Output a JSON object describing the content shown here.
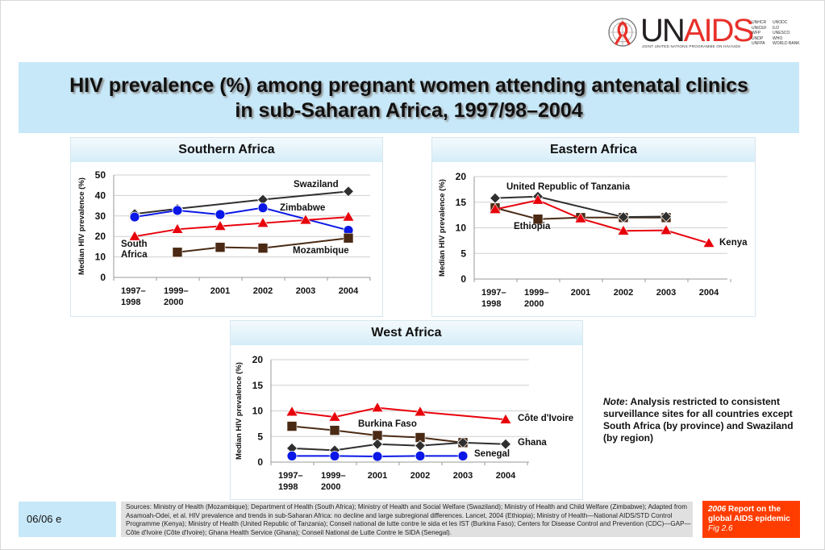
{
  "logo": {
    "brand_un": "UN",
    "brand_aids": "AIDS",
    "tagline": "JOINT UNITED NATIONS PROGRAMME ON HIV/AIDS",
    "agencies_col1": [
      "UNHCR",
      "UNICEF",
      "WFP",
      "UNDP",
      "UNFPA"
    ],
    "agencies_col2": [
      "UNODC",
      "ILO",
      "UNESCO",
      "WHO",
      "WORLD BANK"
    ]
  },
  "title": {
    "line1": "HIV prevalence (%) among pregnant women attending antenatal clinics",
    "line2": "in sub-Saharan Africa, 1997/98–2004"
  },
  "note": {
    "label": "Note",
    "text": ": Analysis restricted to consistent surveillance sites for all countries except South Africa (by province) and Swaziland (by region)"
  },
  "footer": {
    "date": "06/06  e",
    "sources": "Sources:  Ministry of Health (Mozambique); Department of Health (South Africa); Ministry of Health and Social Welfare (Swaziland); Ministry of Health and Child Welfare (Zimbabwe); Adapted from Asamoah-Odei, et al. HIV prevalence and trends in sub-Saharan Africa: no decline and large subregional differences. Lancet, 2004 (Ethiopia); Ministry of Health—National AIDS/STD Control Programme (Kenya); Ministry of Health (United Republic of Tanzania); Conseil national de lutte contre le sida et les IST (Burkina Faso); Centers for Disease Control and Prevention (CDC)—GAP—Côte d'Ivoire (Côte d'Ivoire); Ghana Health Service (Ghana); Conseil National de Lutte Contre le SIDA (Senegal).",
    "report_year": "2006",
    "report_title": " Report on the global AIDS epidemic",
    "report_fig": "Fig 2.6"
  },
  "colors": {
    "title_band": "#c7e8f8",
    "report_box": "#ff3d00",
    "red": "#e8000b",
    "blue": "#0a17e6",
    "brown": "#4a2a14",
    "dark": "#2f2f2f"
  },
  "chart_data": [
    {
      "type": "line",
      "title": "Southern Africa",
      "ylabel": "Median HIV prevalence (%)",
      "xlabel": "",
      "categories": [
        "1997–1998",
        "1999–2000",
        "2001",
        "2002",
        "2003",
        "2004"
      ],
      "yticks": [
        0,
        10,
        20,
        30,
        40,
        50
      ],
      "ylim": [
        0,
        50
      ],
      "grid": true,
      "series": [
        {
          "name": "Swaziland",
          "marker": "diamond",
          "color": "#2f2f2f",
          "values": [
            31,
            33.5,
            null,
            38,
            null,
            42
          ]
        },
        {
          "name": "Zimbabwe",
          "marker": "circle",
          "color": "#0a17e6",
          "values": [
            29.5,
            32.7,
            30.7,
            34,
            null,
            23
          ]
        },
        {
          "name": "South Africa",
          "marker": "triangle",
          "color": "#e8000b",
          "values": [
            20,
            23.5,
            25,
            26.5,
            28,
            29.5
          ]
        },
        {
          "name": "Mozambique",
          "marker": "square",
          "color": "#4a2a14",
          "values": [
            null,
            12.3,
            14.7,
            14.3,
            null,
            19.2
          ]
        }
      ]
    },
    {
      "type": "line",
      "title": "Eastern Africa",
      "ylabel": "Median HIV prevalence (%)",
      "xlabel": "",
      "categories": [
        "1997–1998",
        "1999–2000",
        "2001",
        "2002",
        "2003",
        "2004"
      ],
      "yticks": [
        0,
        5,
        10,
        15,
        20
      ],
      "ylim": [
        0,
        20
      ],
      "grid": true,
      "series": [
        {
          "name": "Ethiopia",
          "marker": "square",
          "color": "#4a2a14",
          "values": [
            13.9,
            11.7,
            12.0,
            12.0,
            12.0,
            null
          ]
        },
        {
          "name": "United Republic of Tanzania",
          "marker": "diamond",
          "color": "#2f2f2f",
          "values": [
            15.8,
            16.1,
            null,
            12.1,
            12.2,
            null
          ]
        },
        {
          "name": "Kenya",
          "marker": "triangle",
          "color": "#e8000b",
          "values": [
            13.6,
            15.4,
            11.8,
            9.4,
            9.5,
            7.0
          ]
        }
      ]
    },
    {
      "type": "line",
      "title": "West Africa",
      "ylabel": "Median HIV prevalence (%)",
      "xlabel": "",
      "categories": [
        "1997–1998",
        "1999–2000",
        "2001",
        "2002",
        "2003",
        "2004"
      ],
      "yticks": [
        0,
        5,
        10,
        15,
        20
      ],
      "ylim": [
        0,
        20
      ],
      "grid": true,
      "series": [
        {
          "name": "Côte d'Ivoire",
          "marker": "triangle",
          "color": "#e8000b",
          "values": [
            9.8,
            8.8,
            10.6,
            9.8,
            null,
            8.3
          ]
        },
        {
          "name": "Burkina Faso",
          "marker": "square",
          "color": "#4a2a14",
          "values": [
            7.0,
            6.2,
            5.2,
            4.8,
            3.8,
            null
          ]
        },
        {
          "name": "Ghana",
          "marker": "diamond",
          "color": "#2f2f2f",
          "values": [
            2.7,
            2.3,
            3.5,
            3.2,
            3.8,
            3.5
          ]
        },
        {
          "name": "Senegal",
          "marker": "circle",
          "color": "#0a17e6",
          "values": [
            1.2,
            1.2,
            1.1,
            1.2,
            1.2,
            null
          ]
        }
      ]
    }
  ]
}
